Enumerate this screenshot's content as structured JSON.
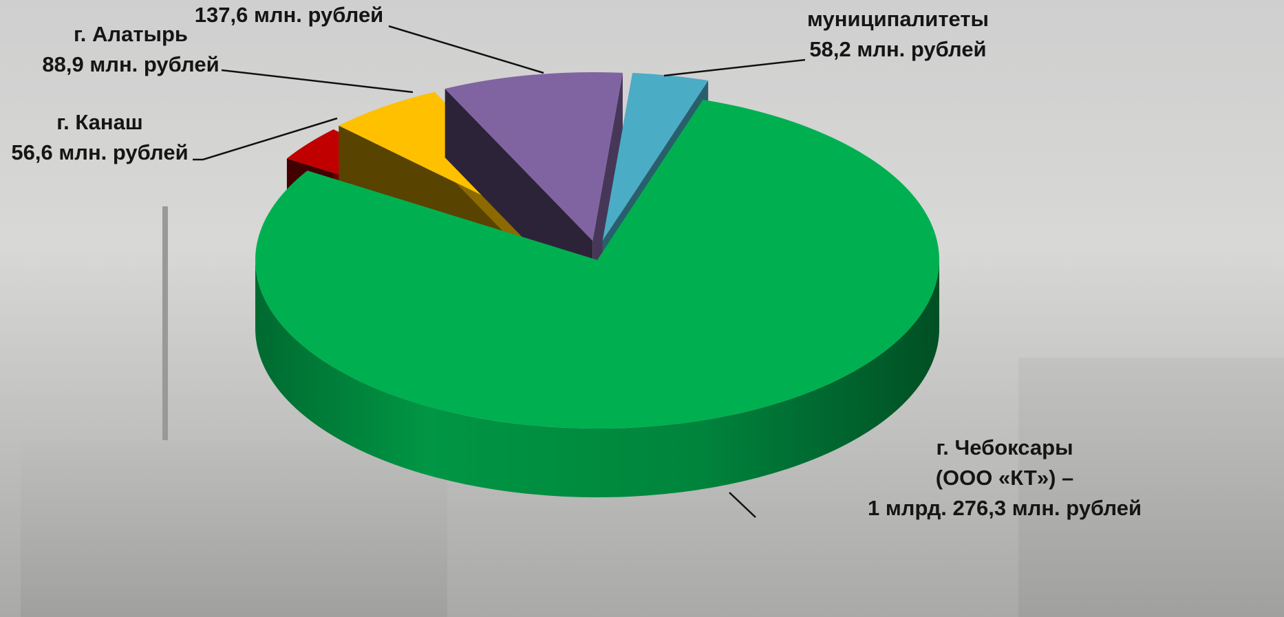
{
  "chart_data": {
    "type": "pie3d",
    "categories": [
      "г. Чебоксары\n(ООО «КТ») –",
      "г. Канаш",
      "г. Алатырь",
      null,
      "муниципалитеты"
    ],
    "values": [
      1276.3,
      56.6,
      88.9,
      137.6,
      58.2
    ],
    "value_labels": [
      "1 млрд. 276,3 млн. рублей",
      "56,6 млн. рублей",
      "88,9 млн. рублей",
      "137,6 млн. рублей",
      "58,2 млн. рублей"
    ],
    "colors": [
      "#00b050",
      "#c00000",
      "#ffc000",
      "#8064a2",
      "#4bacc6"
    ]
  }
}
